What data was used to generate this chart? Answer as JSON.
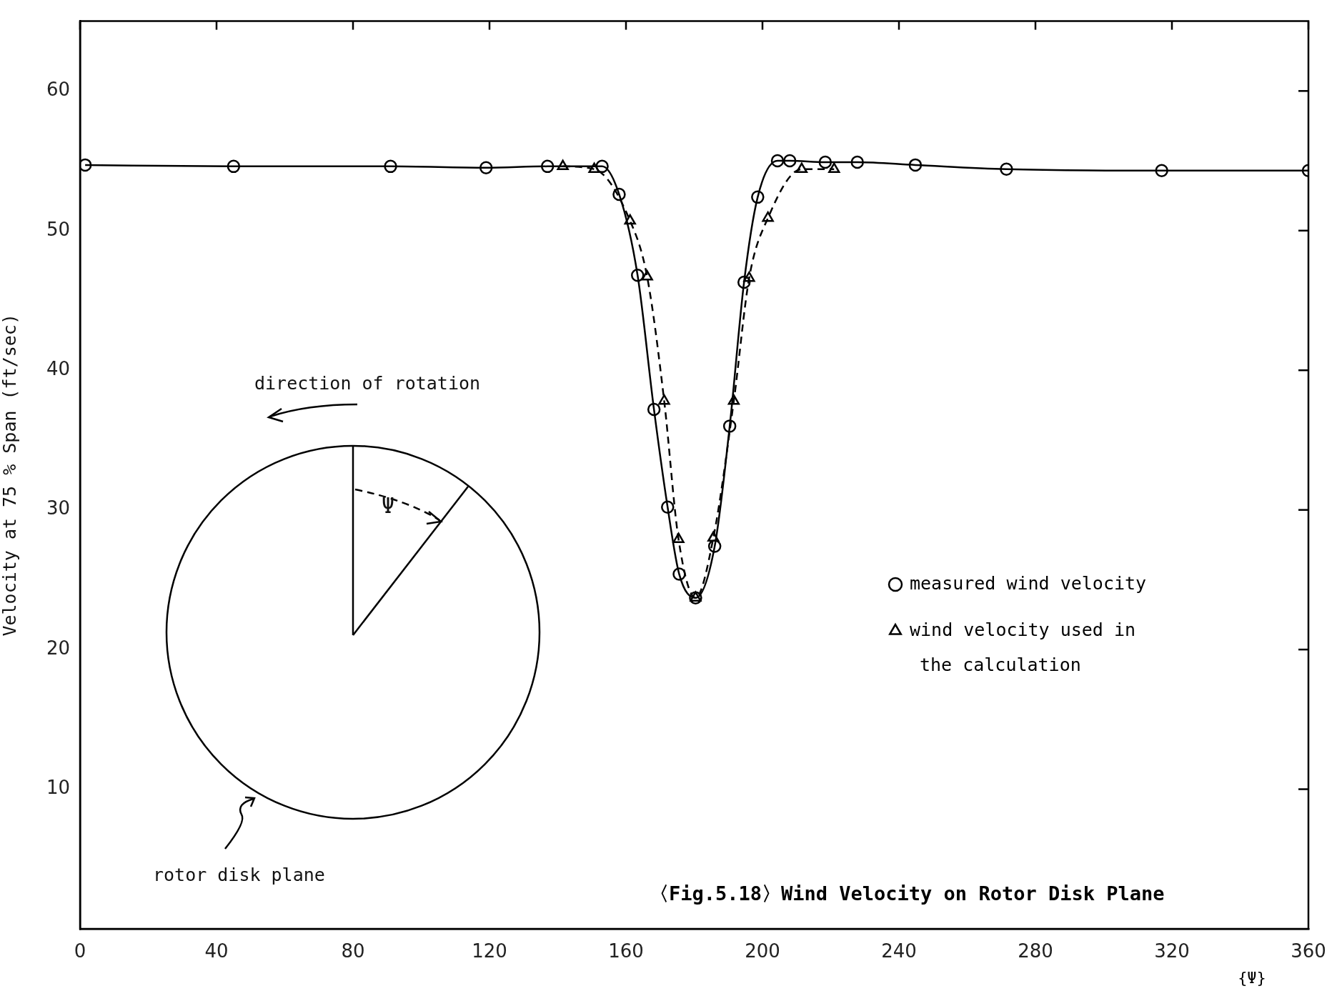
{
  "chart_data": {
    "type": "line",
    "title": "〈Fig.5.18〉Wind Velocity on Rotor Disk Plane",
    "xlabel": "{Ψ}",
    "ylabel": "Velocity at 75 % Span (ft/sec)",
    "xlim": [
      0,
      360
    ],
    "xticks": [
      0,
      40,
      80,
      120,
      160,
      200,
      240,
      280,
      320,
      360
    ],
    "ylim": [
      0,
      65
    ],
    "yticks": [
      10,
      20,
      30,
      40,
      50,
      60
    ],
    "legend": "right",
    "series": [
      {
        "name": "measured wind velocity",
        "color": "#000000",
        "marker": "circle",
        "line_style": "solid",
        "x": [
          1.5,
          45,
          91,
          119,
          137,
          153,
          158,
          163.4,
          168.2,
          172.2,
          175.6,
          180.4,
          186,
          190.4,
          194.6,
          198.6,
          204.4,
          208,
          218.4,
          227.8,
          244.8,
          271.5,
          317,
          360
        ],
        "values": [
          54.7,
          54.6,
          54.6,
          54.5,
          54.6,
          54.6,
          52.6,
          46.8,
          37.2,
          30.2,
          25.4,
          23.7,
          27.4,
          36.0,
          46.3,
          52.4,
          55.0,
          55.0,
          54.9,
          54.9,
          54.7,
          54.4,
          54.3,
          54.3
        ]
      },
      {
        "name": "wind velocity used in the calculation",
        "color": "#000000",
        "marker": "triangle",
        "line_style": "dashed",
        "x": [
          141.5,
          150.7,
          161.2,
          166.2,
          171.2,
          175.4,
          180.4,
          185.6,
          191.6,
          196.1,
          201.6,
          211.5,
          221
        ],
        "values": [
          54.6,
          54.4,
          50.7,
          46.7,
          37.8,
          27.9,
          23.7,
          28.0,
          37.8,
          46.6,
          50.9,
          54.4,
          54.4
        ]
      }
    ],
    "annotations": [
      "direction of rotation",
      "Ψ",
      "rotor disk plane"
    ]
  }
}
